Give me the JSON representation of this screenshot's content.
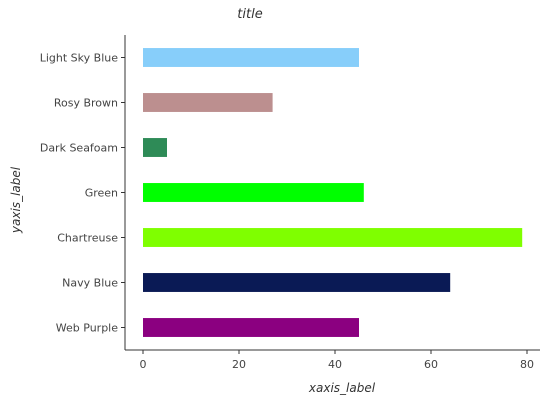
{
  "chart_data": {
    "type": "bar",
    "orientation": "horizontal",
    "title": "title",
    "xlabel": "xaxis_label",
    "ylabel": "yaxis_label",
    "categories": [
      "Web Purple",
      "Navy Blue",
      "Chartreuse",
      "Green",
      "Dark Seafoam",
      "Rosy Brown",
      "Light Sky Blue"
    ],
    "values": [
      45,
      64,
      79,
      46,
      5,
      27,
      45
    ],
    "colors": [
      "#8b0080",
      "#0a1a55",
      "#7fff00",
      "#00ff00",
      "#2e8b57",
      "#bc8f8f",
      "#87cefa"
    ],
    "xlim": [
      0,
      80
    ],
    "xticks": [
      0,
      20,
      40,
      60,
      80
    ],
    "grid": false,
    "legend": "none"
  }
}
